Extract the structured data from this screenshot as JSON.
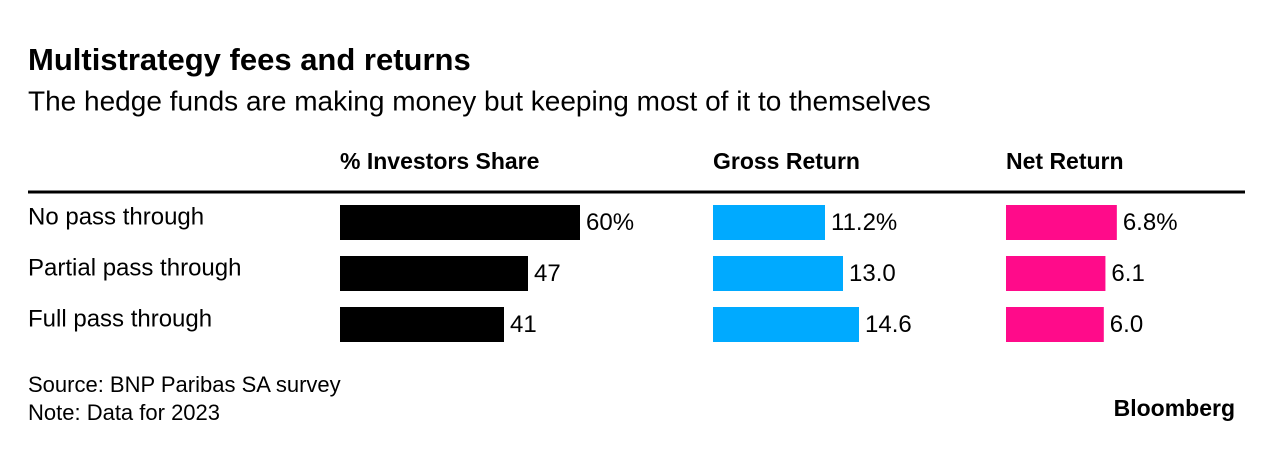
{
  "chart_data": {
    "type": "bar",
    "orientation": "horizontal",
    "title": "Multistrategy fees and returns",
    "subtitle": "The hedge funds are making money but keeping most of it to themselves",
    "categories": [
      "No pass through",
      "Partial pass through",
      "Full pass through"
    ],
    "series": [
      {
        "name": "% Investors Share",
        "color": "#000000",
        "values": [
          60,
          47,
          41
        ],
        "value_labels": [
          "60%",
          "47",
          "41"
        ]
      },
      {
        "name": "Gross Return",
        "color": "#00aaff",
        "values": [
          11.2,
          13.0,
          14.6
        ],
        "value_labels": [
          "11.2%",
          "13.0",
          "14.6"
        ]
      },
      {
        "name": "Net Return",
        "color": "#ff0b8a",
        "values": [
          6.8,
          6.1,
          6.0
        ],
        "value_labels": [
          "6.8%",
          "6.1",
          "6.0"
        ]
      }
    ],
    "source": "Source: BNP Paribas SA survey",
    "note": "Note: Data for 2023",
    "logo": "Bloomberg"
  }
}
